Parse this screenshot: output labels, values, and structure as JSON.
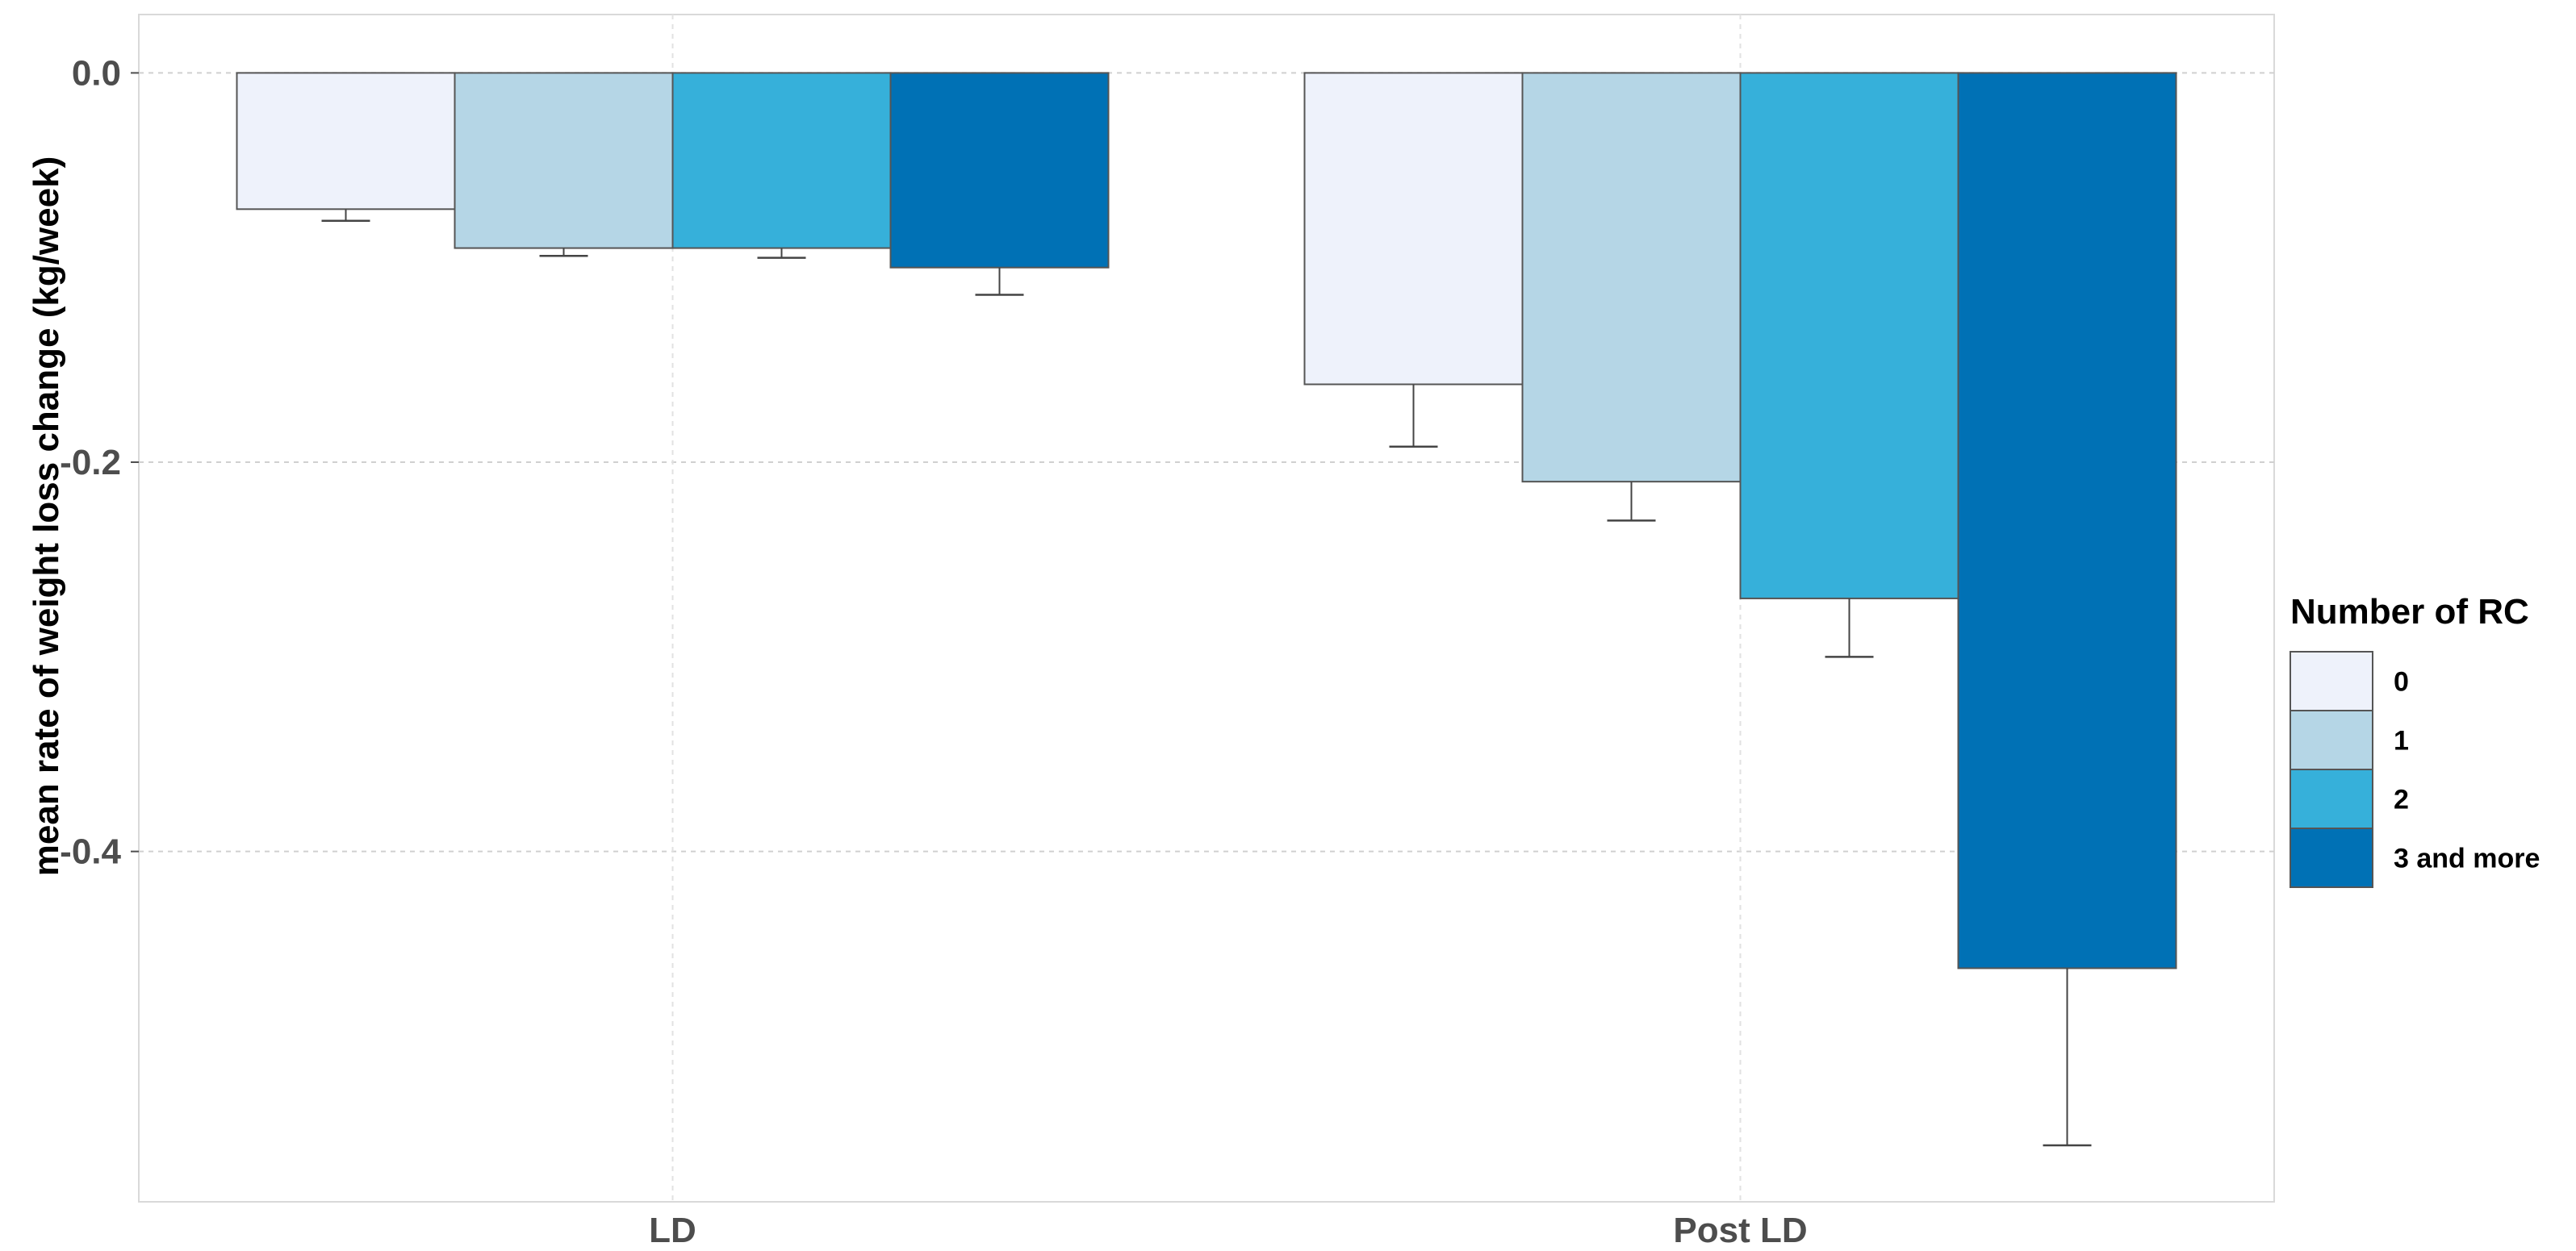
{
  "chart_data": {
    "type": "bar",
    "title": "",
    "xlabel": "",
    "ylabel": "mean rate of weight loss change (kg/week)",
    "ylim": [
      -0.58,
      0.03
    ],
    "yticks": [
      0.0,
      -0.2,
      -0.4
    ],
    "ytick_labels": [
      "0.0",
      "-0.2",
      "-0.4"
    ],
    "categories": [
      "LD",
      "Post LD"
    ],
    "legend": {
      "title": "Number of RC",
      "position": "right"
    },
    "series": [
      {
        "name": "0",
        "color": "#eef2fb",
        "values": [
          -0.07,
          -0.16
        ],
        "error_lower": [
          -0.076,
          -0.192
        ]
      },
      {
        "name": "1",
        "color": "#b5d6e6",
        "values": [
          -0.09,
          -0.21
        ],
        "error_lower": [
          -0.094,
          -0.23
        ]
      },
      {
        "name": "2",
        "color": "#36b0da",
        "values": [
          -0.09,
          -0.27
        ],
        "error_lower": [
          -0.095,
          -0.3
        ]
      },
      {
        "name": "3 and more",
        "color": "#0071b5",
        "values": [
          -0.1,
          -0.46
        ],
        "error_lower": [
          -0.114,
          -0.551
        ]
      }
    ],
    "grid": true
  }
}
